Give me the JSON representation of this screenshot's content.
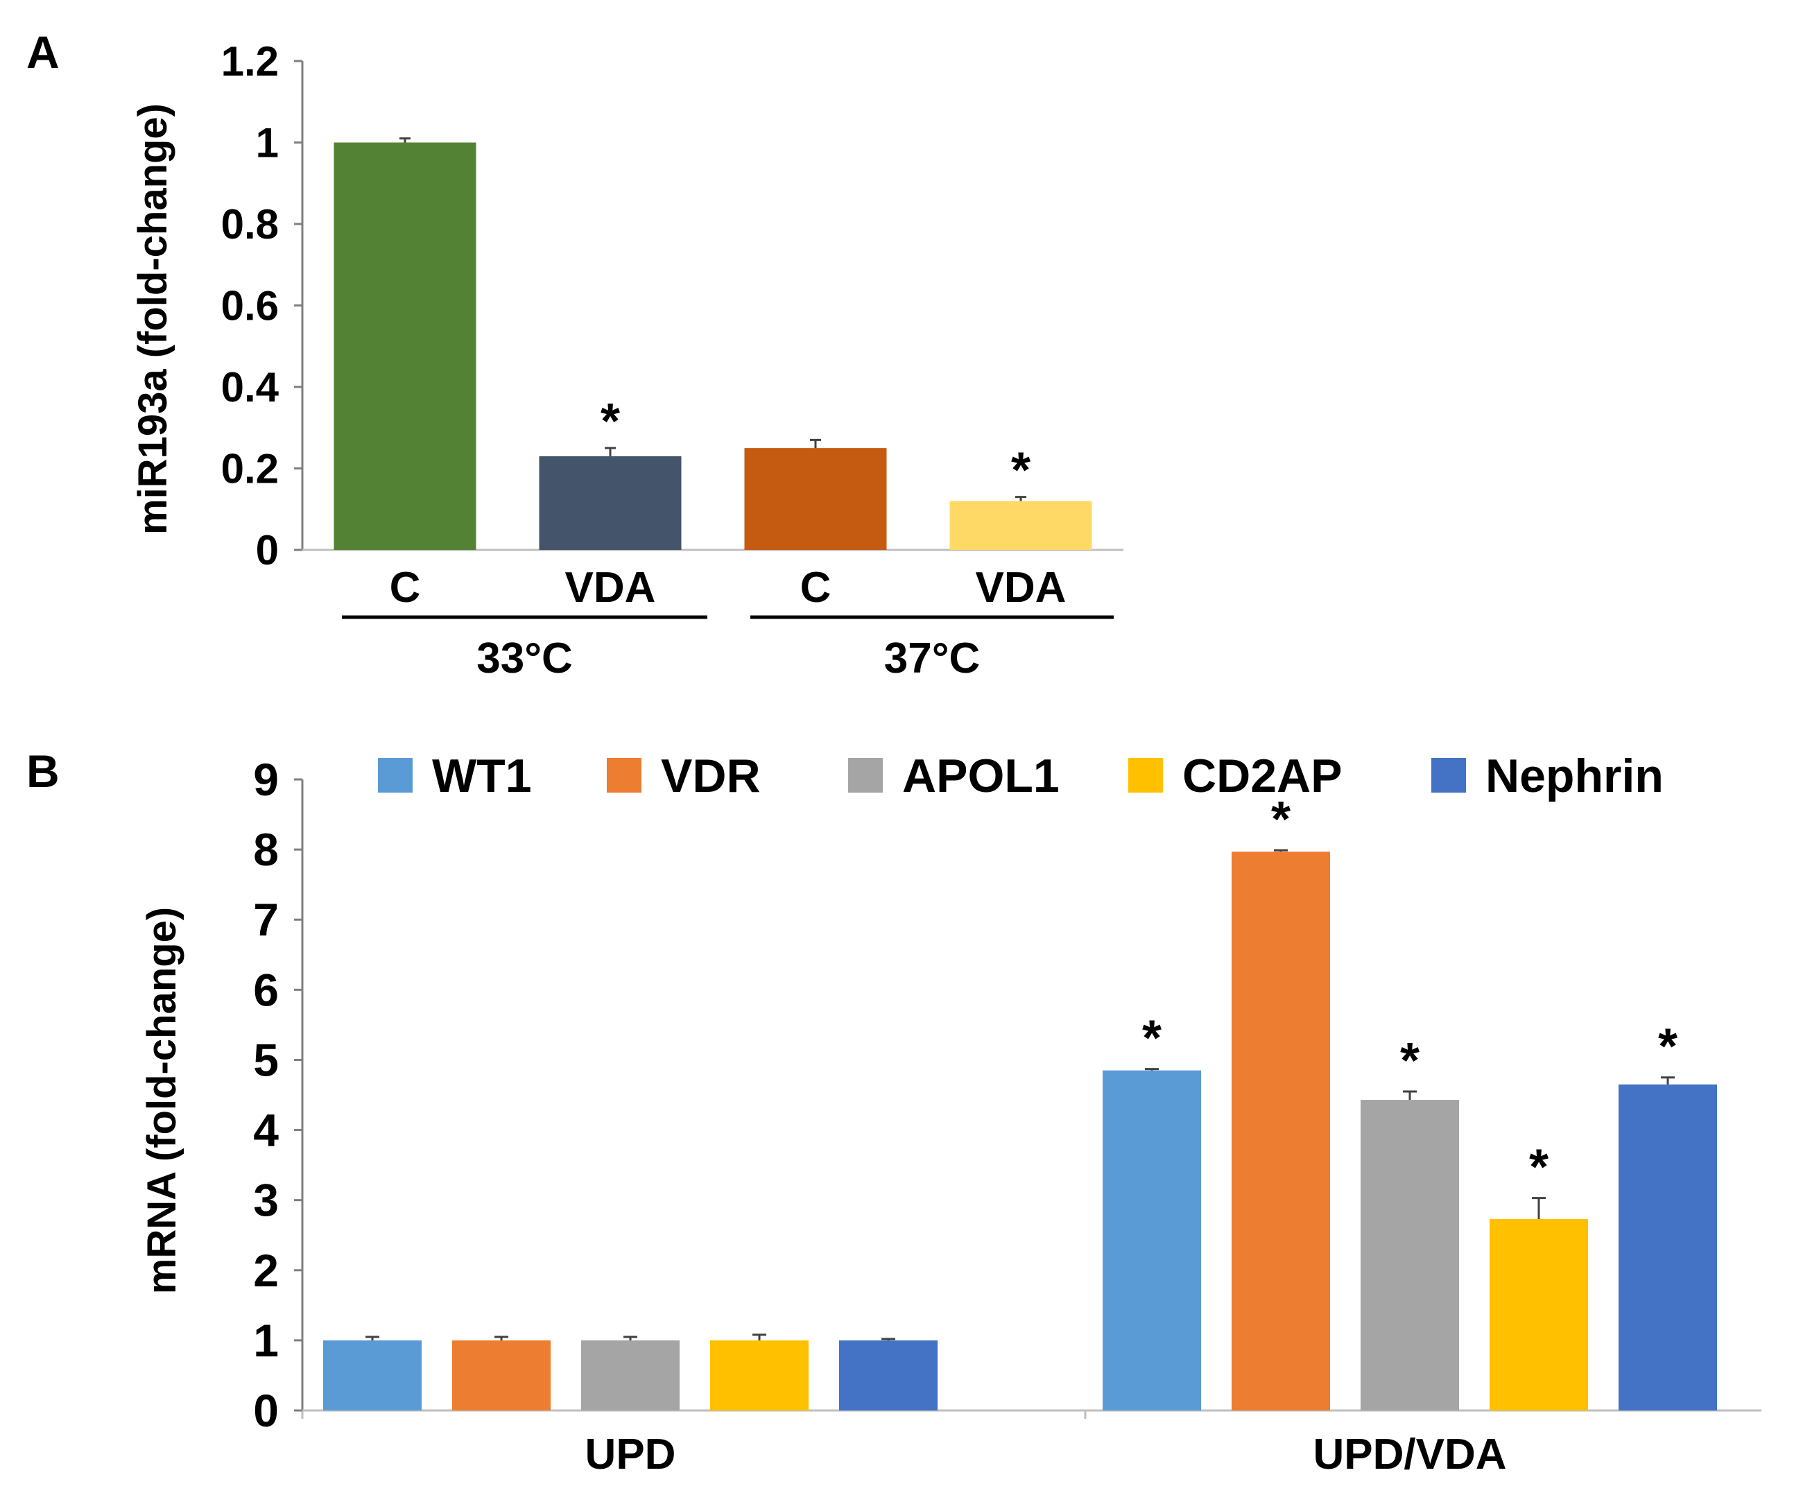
{
  "chart_data": [
    {
      "panel": "A",
      "type": "bar",
      "ylabel": "miR193a (fold-change)",
      "ylim": [
        0,
        1.2
      ],
      "yticks": [
        "0",
        "0.2",
        "0.4",
        "0.6",
        "0.8",
        "1",
        "1.2"
      ],
      "categories": [
        "C",
        "VDA",
        "C",
        "VDA"
      ],
      "groups": [
        "33°C",
        "37°C"
      ],
      "values": [
        1.0,
        0.23,
        0.25,
        0.12
      ],
      "errors": [
        0.01,
        0.02,
        0.02,
        0.01
      ],
      "colors": [
        "#548235",
        "#44546A",
        "#C55A11",
        "#FFD966"
      ],
      "significance": [
        "",
        "*",
        "",
        "*"
      ]
    },
    {
      "panel": "B",
      "type": "bar",
      "ylabel": "mRNA (fold-change)",
      "ylim": [
        0,
        9
      ],
      "yticks": [
        "0",
        "1",
        "2",
        "3",
        "4",
        "5",
        "6",
        "7",
        "8",
        "9"
      ],
      "categories": [
        "UPD",
        "UPD/VDA"
      ],
      "series": [
        {
          "name": "WT1",
          "color": "#5B9BD5",
          "values": [
            1.0,
            4.85
          ],
          "errors": [
            0.05,
            0.02
          ],
          "significance": [
            "",
            "*"
          ]
        },
        {
          "name": "VDR",
          "color": "#ED7D31",
          "values": [
            1.0,
            7.97
          ],
          "errors": [
            0.05,
            0.02
          ],
          "significance": [
            "",
            "*"
          ]
        },
        {
          "name": "APOL1",
          "color": "#A5A5A5",
          "values": [
            1.0,
            4.43
          ],
          "errors": [
            0.05,
            0.12
          ],
          "significance": [
            "",
            "*"
          ]
        },
        {
          "name": "CD2AP",
          "color": "#FFC000",
          "values": [
            1.0,
            2.73
          ],
          "errors": [
            0.08,
            0.3
          ],
          "significance": [
            "",
            "*"
          ]
        },
        {
          "name": "Nephrin",
          "color": "#4472C4",
          "values": [
            1.0,
            4.65
          ],
          "errors": [
            0.02,
            0.1
          ],
          "significance": [
            "",
            "*"
          ]
        }
      ]
    }
  ]
}
